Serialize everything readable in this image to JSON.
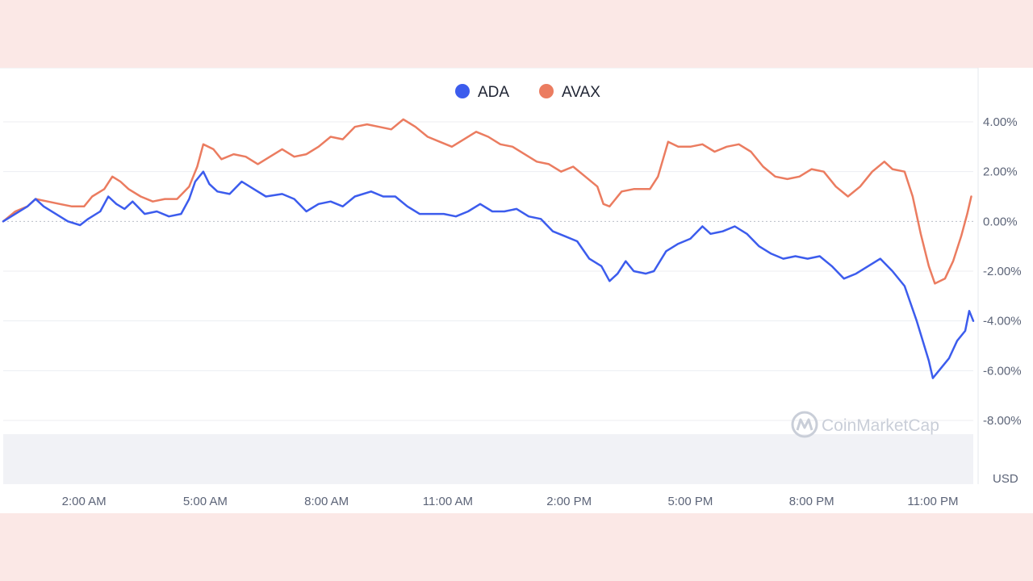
{
  "chart_data": {
    "type": "line",
    "title": "",
    "xlabel": "",
    "ylabel": "USD",
    "x_ticks": [
      "2:00 AM",
      "5:00 AM",
      "8:00 AM",
      "11:00 AM",
      "2:00 PM",
      "5:00 PM",
      "8:00 PM",
      "11:00 PM"
    ],
    "y_ticks": [
      "4.00%",
      "2.00%",
      "0.00%",
      "-2.00%",
      "-4.00%",
      "-6.00%",
      "-8.00%"
    ],
    "y_tick_values": [
      4,
      2,
      0,
      -2,
      -4,
      -6,
      -8
    ],
    "ylim": [
      -8,
      4
    ],
    "x_hours_range": [
      0,
      24
    ],
    "grid": true,
    "zero_line_dashed": true,
    "legend_position": "top-center",
    "watermark": "CoinMarketCap",
    "series": [
      {
        "name": "ADA",
        "color": "#3c5ced",
        "points": [
          [
            0,
            0
          ],
          [
            0.3,
            0.3
          ],
          [
            0.6,
            0.6
          ],
          [
            0.8,
            0.9
          ],
          [
            1.0,
            0.6
          ],
          [
            1.3,
            0.3
          ],
          [
            1.6,
            0.0
          ],
          [
            1.9,
            -0.15
          ],
          [
            2.1,
            0.1
          ],
          [
            2.4,
            0.4
          ],
          [
            2.6,
            1.0
          ],
          [
            2.8,
            0.7
          ],
          [
            3.0,
            0.5
          ],
          [
            3.2,
            0.8
          ],
          [
            3.5,
            0.3
          ],
          [
            3.8,
            0.4
          ],
          [
            4.1,
            0.2
          ],
          [
            4.4,
            0.3
          ],
          [
            4.6,
            0.9
          ],
          [
            4.75,
            1.6
          ],
          [
            4.95,
            2.0
          ],
          [
            5.1,
            1.5
          ],
          [
            5.3,
            1.2
          ],
          [
            5.6,
            1.1
          ],
          [
            5.9,
            1.6
          ],
          [
            6.2,
            1.3
          ],
          [
            6.5,
            1.0
          ],
          [
            6.9,
            1.1
          ],
          [
            7.2,
            0.9
          ],
          [
            7.5,
            0.4
          ],
          [
            7.8,
            0.7
          ],
          [
            8.1,
            0.8
          ],
          [
            8.4,
            0.6
          ],
          [
            8.7,
            1.0
          ],
          [
            9.1,
            1.2
          ],
          [
            9.4,
            1.0
          ],
          [
            9.7,
            1.0
          ],
          [
            10.0,
            0.6
          ],
          [
            10.3,
            0.3
          ],
          [
            10.6,
            0.3
          ],
          [
            10.9,
            0.3
          ],
          [
            11.2,
            0.2
          ],
          [
            11.5,
            0.4
          ],
          [
            11.8,
            0.7
          ],
          [
            12.1,
            0.4
          ],
          [
            12.4,
            0.4
          ],
          [
            12.7,
            0.5
          ],
          [
            13.0,
            0.2
          ],
          [
            13.3,
            0.1
          ],
          [
            13.6,
            -0.4
          ],
          [
            13.9,
            -0.6
          ],
          [
            14.2,
            -0.8
          ],
          [
            14.5,
            -1.5
          ],
          [
            14.8,
            -1.8
          ],
          [
            15.0,
            -2.4
          ],
          [
            15.2,
            -2.1
          ],
          [
            15.4,
            -1.6
          ],
          [
            15.6,
            -2.0
          ],
          [
            15.9,
            -2.1
          ],
          [
            16.1,
            -2.0
          ],
          [
            16.4,
            -1.2
          ],
          [
            16.7,
            -0.9
          ],
          [
            17.0,
            -0.7
          ],
          [
            17.3,
            -0.2
          ],
          [
            17.5,
            -0.5
          ],
          [
            17.8,
            -0.4
          ],
          [
            18.1,
            -0.2
          ],
          [
            18.4,
            -0.5
          ],
          [
            18.7,
            -1.0
          ],
          [
            19.0,
            -1.3
          ],
          [
            19.3,
            -1.5
          ],
          [
            19.6,
            -1.4
          ],
          [
            19.9,
            -1.5
          ],
          [
            20.2,
            -1.4
          ],
          [
            20.5,
            -1.8
          ],
          [
            20.8,
            -2.3
          ],
          [
            21.1,
            -2.1
          ],
          [
            21.4,
            -1.8
          ],
          [
            21.7,
            -1.5
          ],
          [
            22.0,
            -2.0
          ],
          [
            22.3,
            -2.6
          ],
          [
            22.6,
            -4.0
          ],
          [
            22.9,
            -5.6
          ],
          [
            23.0,
            -6.3
          ],
          [
            23.2,
            -5.9
          ],
          [
            23.4,
            -5.5
          ],
          [
            23.6,
            -4.8
          ],
          [
            23.8,
            -4.4
          ],
          [
            23.9,
            -3.6
          ],
          [
            24.0,
            -4.0
          ]
        ]
      },
      {
        "name": "AVAX",
        "color": "#eb7c60",
        "points": [
          [
            0,
            0
          ],
          [
            0.3,
            0.4
          ],
          [
            0.6,
            0.6
          ],
          [
            0.8,
            0.9
          ],
          [
            1.1,
            0.8
          ],
          [
            1.4,
            0.7
          ],
          [
            1.7,
            0.6
          ],
          [
            2.0,
            0.6
          ],
          [
            2.2,
            1.0
          ],
          [
            2.5,
            1.3
          ],
          [
            2.7,
            1.8
          ],
          [
            2.9,
            1.6
          ],
          [
            3.1,
            1.3
          ],
          [
            3.4,
            1.0
          ],
          [
            3.7,
            0.8
          ],
          [
            4.0,
            0.9
          ],
          [
            4.3,
            0.9
          ],
          [
            4.6,
            1.4
          ],
          [
            4.8,
            2.2
          ],
          [
            4.95,
            3.1
          ],
          [
            5.2,
            2.9
          ],
          [
            5.4,
            2.5
          ],
          [
            5.7,
            2.7
          ],
          [
            6.0,
            2.6
          ],
          [
            6.3,
            2.3
          ],
          [
            6.6,
            2.6
          ],
          [
            6.9,
            2.9
          ],
          [
            7.2,
            2.6
          ],
          [
            7.5,
            2.7
          ],
          [
            7.8,
            3.0
          ],
          [
            8.1,
            3.4
          ],
          [
            8.4,
            3.3
          ],
          [
            8.7,
            3.8
          ],
          [
            9.0,
            3.9
          ],
          [
            9.3,
            3.8
          ],
          [
            9.6,
            3.7
          ],
          [
            9.9,
            4.1
          ],
          [
            10.2,
            3.8
          ],
          [
            10.5,
            3.4
          ],
          [
            10.8,
            3.2
          ],
          [
            11.1,
            3.0
          ],
          [
            11.4,
            3.3
          ],
          [
            11.7,
            3.6
          ],
          [
            12.0,
            3.4
          ],
          [
            12.3,
            3.1
          ],
          [
            12.6,
            3.0
          ],
          [
            12.9,
            2.7
          ],
          [
            13.2,
            2.4
          ],
          [
            13.5,
            2.3
          ],
          [
            13.8,
            2.0
          ],
          [
            14.1,
            2.2
          ],
          [
            14.4,
            1.8
          ],
          [
            14.7,
            1.4
          ],
          [
            14.85,
            0.7
          ],
          [
            15.0,
            0.6
          ],
          [
            15.3,
            1.2
          ],
          [
            15.6,
            1.3
          ],
          [
            16.0,
            1.3
          ],
          [
            16.2,
            1.8
          ],
          [
            16.45,
            3.2
          ],
          [
            16.7,
            3.0
          ],
          [
            17.0,
            3.0
          ],
          [
            17.3,
            3.1
          ],
          [
            17.6,
            2.8
          ],
          [
            17.9,
            3.0
          ],
          [
            18.2,
            3.1
          ],
          [
            18.5,
            2.8
          ],
          [
            18.8,
            2.2
          ],
          [
            19.1,
            1.8
          ],
          [
            19.4,
            1.7
          ],
          [
            19.7,
            1.8
          ],
          [
            20.0,
            2.1
          ],
          [
            20.3,
            2.0
          ],
          [
            20.6,
            1.4
          ],
          [
            20.9,
            1.0
          ],
          [
            21.2,
            1.4
          ],
          [
            21.5,
            2.0
          ],
          [
            21.8,
            2.4
          ],
          [
            22.0,
            2.1
          ],
          [
            22.3,
            2.0
          ],
          [
            22.5,
            1.0
          ],
          [
            22.7,
            -0.5
          ],
          [
            22.9,
            -1.8
          ],
          [
            23.05,
            -2.5
          ],
          [
            23.3,
            -2.3
          ],
          [
            23.5,
            -1.6
          ],
          [
            23.7,
            -0.6
          ],
          [
            23.85,
            0.3
          ],
          [
            23.95,
            1.0
          ]
        ]
      }
    ]
  }
}
